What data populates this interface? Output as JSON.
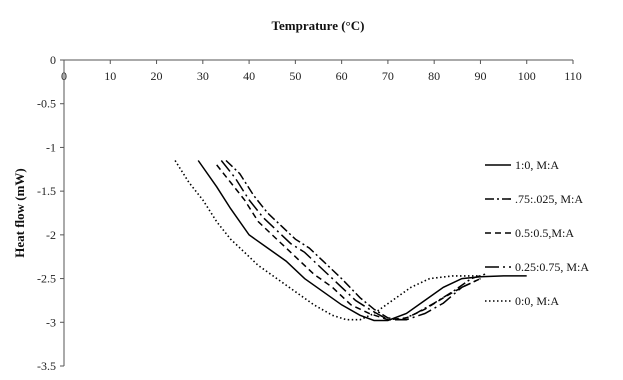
{
  "chart_data": {
    "type": "line",
    "title": "",
    "xlabel": "Temprature (°C)",
    "ylabel": "Heat flow (mW)",
    "xlim": [
      0,
      110
    ],
    "ylim": [
      -3.5,
      0
    ],
    "x_ticks": [
      "0",
      "10",
      "20",
      "30",
      "40",
      "50",
      "60",
      "70",
      "80",
      "90",
      "100",
      "110"
    ],
    "y_ticks": [
      "0",
      "-0.5",
      "-1",
      "-1.5",
      "-2",
      "-2.5",
      "-3",
      "-3.5"
    ],
    "x_axis_position": "top",
    "grid": false,
    "legend_position": "right",
    "series": [
      {
        "name": "1:0, M:A",
        "style": "solid",
        "color": "#000000",
        "points": [
          [
            29,
            -1.15
          ],
          [
            33,
            -1.45
          ],
          [
            36,
            -1.7
          ],
          [
            40,
            -2.0
          ],
          [
            44,
            -2.15
          ],
          [
            48,
            -2.3
          ],
          [
            52,
            -2.5
          ],
          [
            56,
            -2.65
          ],
          [
            60,
            -2.8
          ],
          [
            64,
            -2.92
          ],
          [
            67,
            -2.98
          ],
          [
            70,
            -2.98
          ],
          [
            74,
            -2.9
          ],
          [
            78,
            -2.75
          ],
          [
            82,
            -2.6
          ],
          [
            86,
            -2.5
          ],
          [
            90,
            -2.48
          ],
          [
            95,
            -2.47
          ],
          [
            100,
            -2.47
          ]
        ]
      },
      {
        "name": ".75:.025, M:A",
        "style": "dashdot",
        "color": "#000000",
        "points": [
          [
            35,
            -1.15
          ],
          [
            38,
            -1.3
          ],
          [
            41,
            -1.55
          ],
          [
            44,
            -1.75
          ],
          [
            47,
            -1.9
          ],
          [
            50,
            -2.05
          ],
          [
            53,
            -2.15
          ],
          [
            56,
            -2.3
          ],
          [
            60,
            -2.5
          ],
          [
            64,
            -2.72
          ],
          [
            67,
            -2.85
          ],
          [
            70,
            -2.95
          ],
          [
            73,
            -2.97
          ],
          [
            76,
            -2.9
          ],
          [
            80,
            -2.78
          ],
          [
            84,
            -2.65
          ],
          [
            88,
            -2.5
          ],
          [
            91,
            -2.45
          ]
        ]
      },
      {
        "name": "0.5:0.5,M:A",
        "style": "dashed",
        "color": "#000000",
        "points": [
          [
            33,
            -1.2
          ],
          [
            36,
            -1.4
          ],
          [
            39,
            -1.6
          ],
          [
            42,
            -1.85
          ],
          [
            45,
            -2.0
          ],
          [
            48,
            -2.15
          ],
          [
            51,
            -2.3
          ],
          [
            54,
            -2.45
          ],
          [
            58,
            -2.6
          ],
          [
            62,
            -2.8
          ],
          [
            66,
            -2.9
          ],
          [
            70,
            -2.97
          ],
          [
            74,
            -2.95
          ],
          [
            78,
            -2.85
          ],
          [
            82,
            -2.72
          ],
          [
            86,
            -2.6
          ],
          [
            90,
            -2.5
          ]
        ]
      },
      {
        "name": "0.25:0.75, M:A",
        "style": "longdashdot",
        "color": "#000000",
        "points": [
          [
            34,
            -1.15
          ],
          [
            37,
            -1.35
          ],
          [
            40,
            -1.6
          ],
          [
            43,
            -1.8
          ],
          [
            46,
            -1.95
          ],
          [
            49,
            -2.1
          ],
          [
            52,
            -2.2
          ],
          [
            55,
            -2.35
          ],
          [
            59,
            -2.55
          ],
          [
            63,
            -2.75
          ],
          [
            66,
            -2.85
          ],
          [
            70,
            -2.97
          ],
          [
            74,
            -2.97
          ],
          [
            78,
            -2.9
          ],
          [
            82,
            -2.78
          ],
          [
            86,
            -2.6
          ],
          [
            90,
            -2.5
          ]
        ]
      },
      {
        "name": "0:0, M:A",
        "style": "dotted",
        "color": "#000000",
        "points": [
          [
            24,
            -1.15
          ],
          [
            27,
            -1.4
          ],
          [
            30,
            -1.6
          ],
          [
            33,
            -1.85
          ],
          [
            36,
            -2.05
          ],
          [
            39,
            -2.2
          ],
          [
            42,
            -2.35
          ],
          [
            46,
            -2.5
          ],
          [
            50,
            -2.65
          ],
          [
            54,
            -2.8
          ],
          [
            58,
            -2.92
          ],
          [
            61,
            -2.97
          ],
          [
            64,
            -2.97
          ],
          [
            67,
            -2.9
          ],
          [
            71,
            -2.75
          ],
          [
            75,
            -2.6
          ],
          [
            79,
            -2.5
          ],
          [
            84,
            -2.47
          ],
          [
            90,
            -2.47
          ]
        ]
      }
    ]
  }
}
